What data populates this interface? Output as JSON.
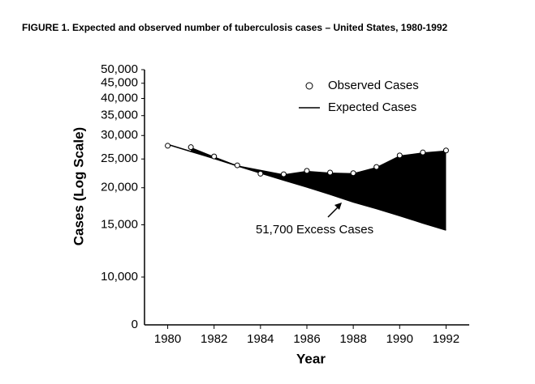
{
  "chart_data": {
    "type": "line",
    "title": "FIGURE 1.  Expected and observed number of tuberculosis cases – United States, 1980-1992",
    "x_label": "Year",
    "y_label": "Cases (Log Scale)",
    "x": [
      1980,
      1981,
      1982,
      1983,
      1984,
      1985,
      1986,
      1987,
      1988,
      1989,
      1990,
      1991,
      1992
    ],
    "series": [
      {
        "name": "Observed Cases",
        "color": "#000000",
        "marker": "circle",
        "values": [
          27700,
          27400,
          25500,
          23800,
          22300,
          22200,
          22800,
          22500,
          22400,
          23500,
          25700,
          26300,
          26700
        ]
      },
      {
        "name": "Expected Cases",
        "color": "#000000",
        "marker": "line",
        "values": [
          28000,
          26500,
          25100,
          23700,
          22400,
          21200,
          20100,
          19000,
          17900,
          17000,
          16100,
          15200,
          14400
        ]
      }
    ],
    "annotation": "51,700 Excess Cases",
    "y_break_label": "0",
    "xlim": [
      1979,
      1993
    ],
    "xticks": [
      1980,
      1982,
      1984,
      1986,
      1988,
      1990,
      1992
    ],
    "ylim": [
      6900,
      50000
    ],
    "y_log": true,
    "yticks": [
      {
        "value": 10000,
        "label": "10,000"
      },
      {
        "value": 15000,
        "label": "15,000"
      },
      {
        "value": 20000,
        "label": "20,000"
      },
      {
        "value": 25000,
        "label": "25,000"
      },
      {
        "value": 30000,
        "label": "30,000"
      },
      {
        "value": 35000,
        "label": "35,000"
      },
      {
        "value": 40000,
        "label": "40,000"
      },
      {
        "value": 45000,
        "label": "45,000"
      },
      {
        "value": 50000,
        "label": "50,000"
      }
    ],
    "fill_excess": true,
    "fill_color": "#000000"
  }
}
